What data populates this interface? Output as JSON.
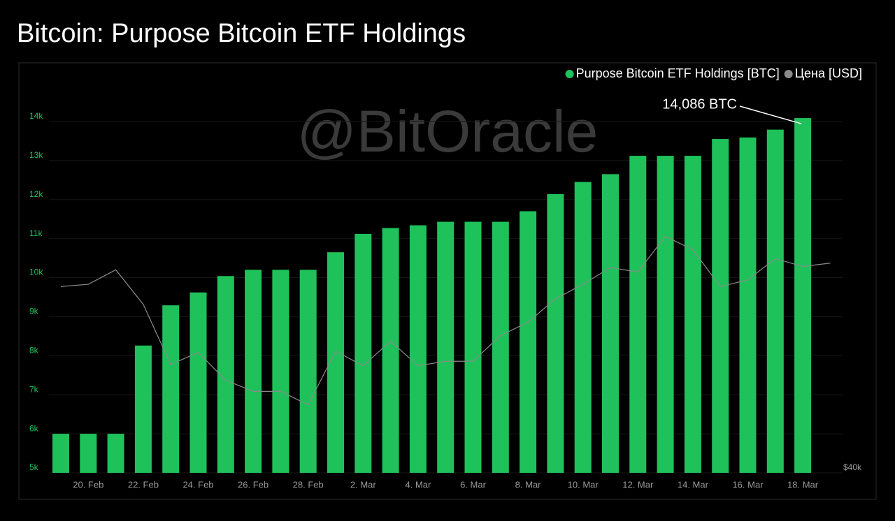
{
  "chart_data": {
    "type": "bar",
    "title": "Bitcoin: Purpose Bitcoin ETF Holdings",
    "watermark": "@BitOracle",
    "categories": [
      null,
      "20. Feb",
      null,
      "22. Feb",
      null,
      "24. Feb",
      null,
      "26. Feb",
      null,
      "28. Feb",
      null,
      "2. Mar",
      null,
      "4. Mar",
      null,
      "6. Mar",
      null,
      "8. Mar",
      null,
      "10. Mar",
      null,
      "12. Mar",
      null,
      "14. Mar",
      null,
      "16. Mar",
      null,
      "18. Mar",
      null
    ],
    "series": [
      {
        "name": "Purpose Bitcoin ETF Holdings [BTC]",
        "color": "#1fc25a",
        "type": "bar",
        "values": [
          6000,
          6000,
          6000,
          8260,
          9290,
          9620,
          10040,
          10200,
          10200,
          10200,
          10650,
          11120,
          11270,
          11340,
          11430,
          11430,
          11430,
          11700,
          12140,
          12450,
          12650,
          13120,
          13120,
          13120,
          13550,
          13590,
          13790,
          14086,
          null
        ],
        "value_labels": [
          null,
          null,
          null,
          null,
          null,
          null,
          null,
          null,
          null,
          null,
          null,
          null,
          null,
          null,
          null,
          null,
          null,
          null,
          null,
          null,
          null,
          null,
          null,
          null,
          null,
          null,
          null,
          "14,086 BTC",
          null
        ]
      },
      {
        "name": "Цена [USD]",
        "color": "#8a8a8a",
        "type": "line",
        "axis": "y2",
        "values": [
          56700,
          56900,
          58200,
          55100,
          49700,
          50800,
          48300,
          47300,
          47300,
          46100,
          50900,
          49600,
          51800,
          49600,
          50000,
          50000,
          52300,
          53500,
          55600,
          56900,
          58400,
          58000,
          61200,
          60000,
          56700,
          57300,
          59200,
          58500,
          58800
        ]
      }
    ],
    "ylim": [
      5000,
      15000
    ],
    "yticks": [
      {
        "value": 5000,
        "label": "5k"
      },
      {
        "value": 6000,
        "label": "6k"
      },
      {
        "value": 7000,
        "label": "7k"
      },
      {
        "value": 8000,
        "label": "8k"
      },
      {
        "value": 9000,
        "label": "9k"
      },
      {
        "value": 10000,
        "label": "10k"
      },
      {
        "value": 11000,
        "label": "11k"
      },
      {
        "value": 12000,
        "label": "12k"
      },
      {
        "value": 13000,
        "label": "13k"
      },
      {
        "value": 14000,
        "label": "14k"
      }
    ],
    "y2lim": [
      40000,
      75000
    ],
    "y2ticks": [
      {
        "value": 40000,
        "label": "$40k"
      }
    ],
    "grid": true,
    "legend": "top-right"
  }
}
